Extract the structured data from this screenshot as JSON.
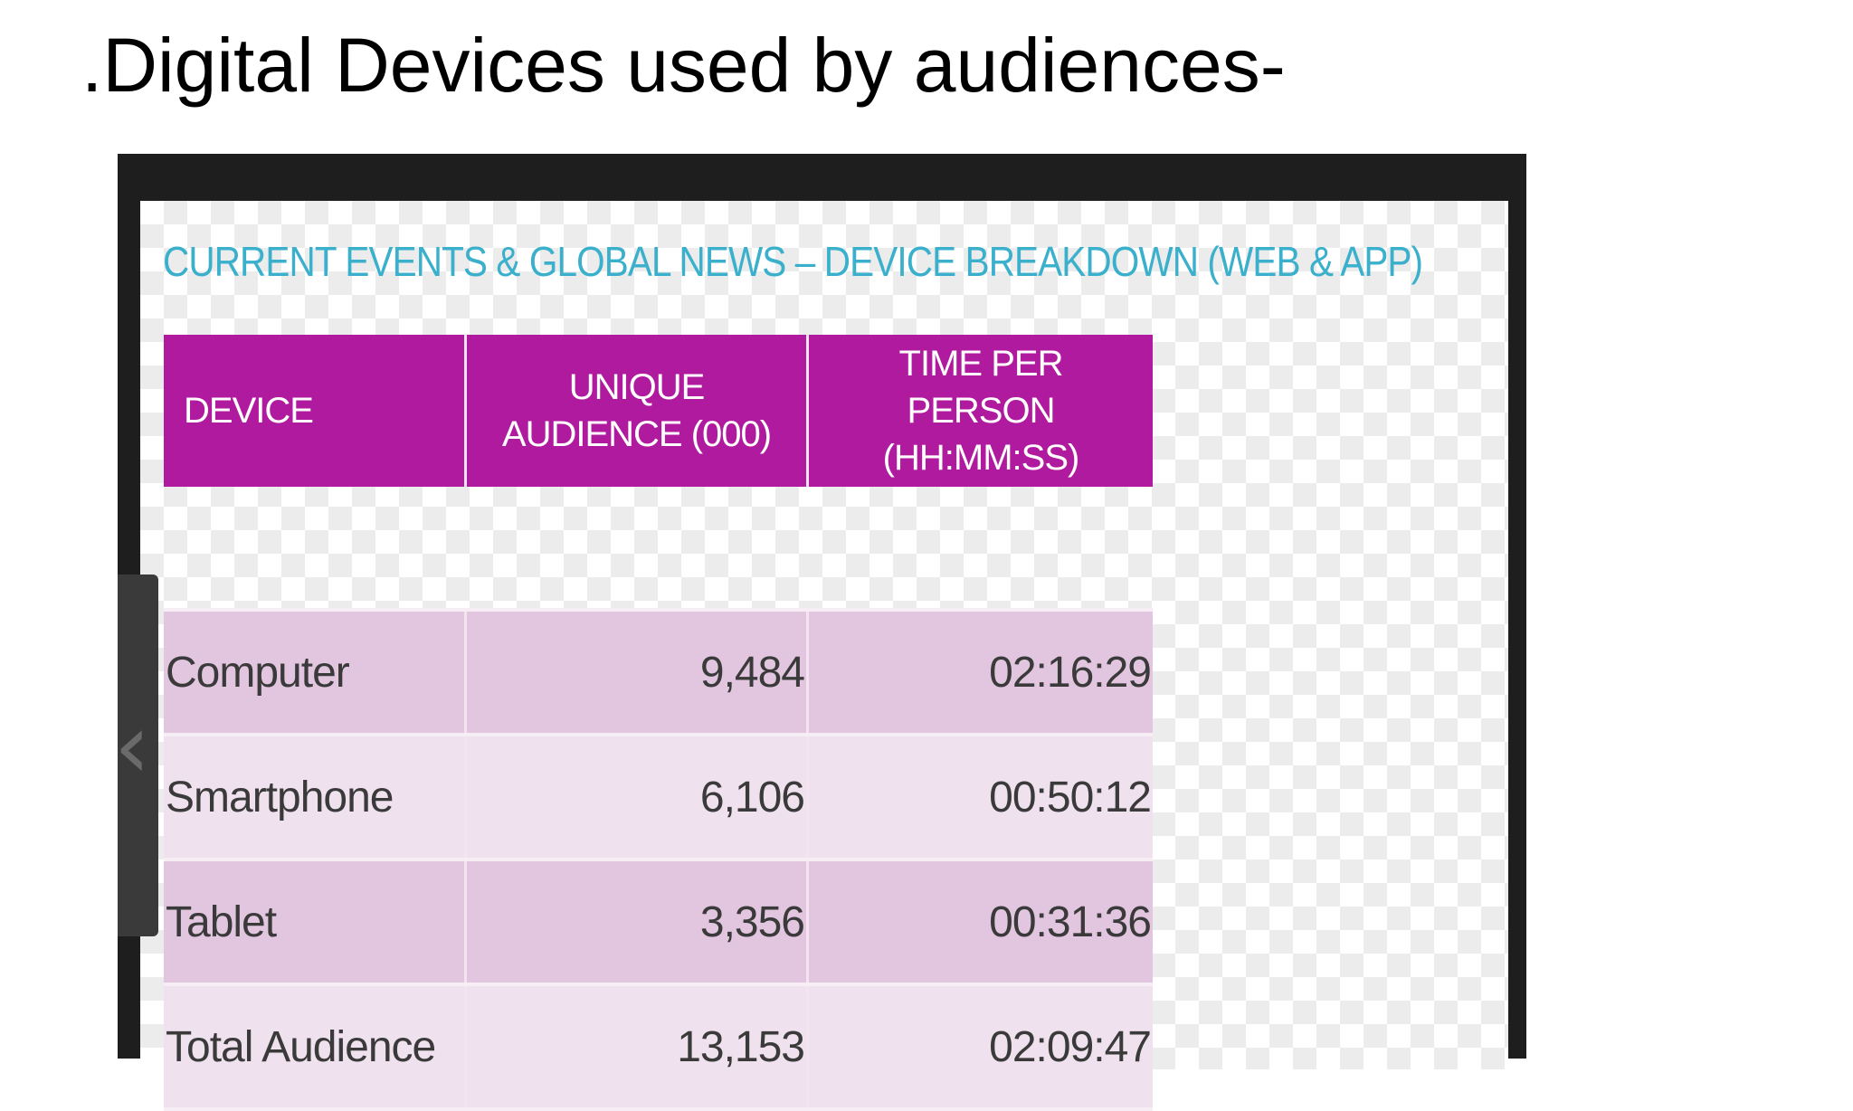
{
  "slide": {
    "title": ".Digital Devices used by audiences-"
  },
  "image": {
    "heading": "CURRENT EVENTS & GLOBAL NEWS – DEVICE BREAKDOWN (WEB & APP)",
    "table": {
      "headers": {
        "device": "DEVICE",
        "audience": "UNIQUE AUDIENCE (000)",
        "time": "TIME PER PERSON (HH:MM:SS)"
      },
      "rows": [
        {
          "device": "Computer",
          "audience": "9,484",
          "time": "02:16:29"
        },
        {
          "device": "Smartphone",
          "audience": "6,106",
          "time": "00:50:12"
        },
        {
          "device": "Tablet",
          "audience": "3,356",
          "time": "00:31:36"
        },
        {
          "device": "Total Audience",
          "audience": "13,153",
          "time": "02:09:47"
        }
      ]
    }
  },
  "colors": {
    "heading": "#3ab0cc",
    "header_bg": "#b01a9e",
    "row_dark": "#e2c6df",
    "row_light": "#f0e1ee"
  },
  "icons": {
    "side_tab": "chevron-left-icon"
  }
}
